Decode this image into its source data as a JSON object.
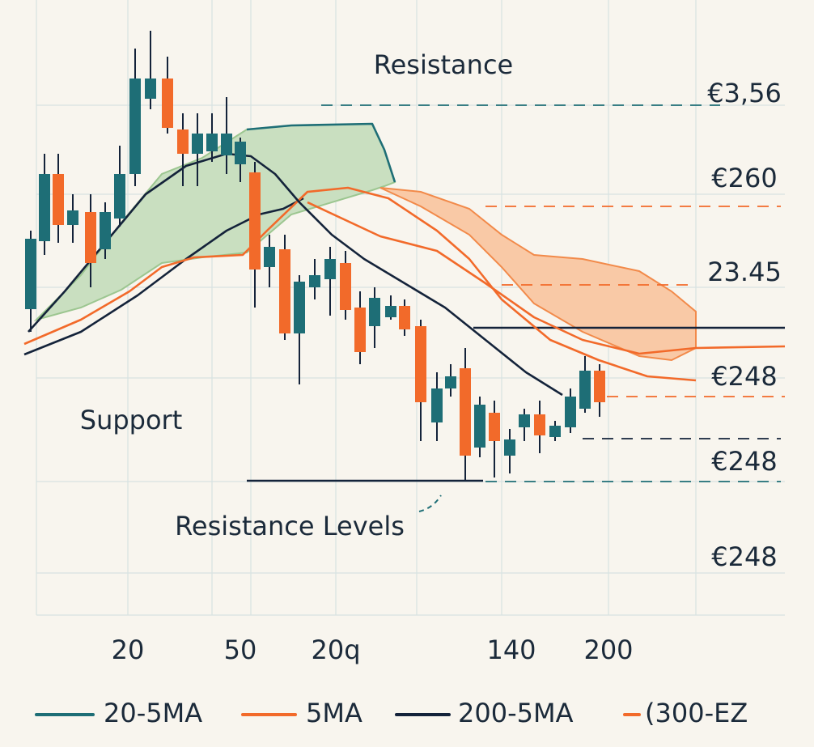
{
  "chart_data": {
    "type": "candlestick",
    "x": [
      38,
      55,
      72,
      90,
      112,
      130,
      148,
      167,
      186,
      207,
      226,
      244,
      262,
      280,
      297,
      315,
      333,
      352,
      370,
      389,
      408,
      427,
      445,
      463,
      483,
      500,
      520,
      540,
      557,
      575,
      593,
      611,
      630,
      648,
      667,
      686,
      705,
      723,
      741
    ],
    "open": [
      378,
      462,
      545,
      482,
      498,
      452,
      490,
      545,
      638,
      663,
      600,
      570,
      573,
      568,
      557,
      547,
      430,
      452,
      348,
      405,
      415,
      435,
      380,
      357,
      368,
      382,
      357,
      238,
      280,
      305,
      207,
      250,
      197,
      232,
      248,
      220,
      232,
      255,
      302
    ],
    "close": [
      465,
      545,
      482,
      500,
      435,
      498,
      545,
      663,
      663,
      602,
      570,
      595,
      595,
      595,
      585,
      427,
      455,
      348,
      412,
      420,
      440,
      377,
      325,
      392,
      382,
      353,
      263,
      280,
      295,
      197,
      260,
      215,
      217,
      248,
      222,
      234,
      270,
      302,
      263
    ],
    "high": [
      475,
      570,
      570,
      520,
      520,
      510,
      580,
      700,
      722,
      690,
      620,
      620,
      620,
      640,
      590,
      560,
      470,
      470,
      420,
      440,
      455,
      450,
      400,
      405,
      395,
      390,
      365,
      300,
      310,
      330,
      270,
      265,
      230,
      255,
      265,
      240,
      280,
      320,
      310
    ],
    "low": [
      350,
      445,
      460,
      460,
      405,
      440,
      480,
      530,
      625,
      595,
      530,
      530,
      560,
      545,
      535,
      380,
      405,
      340,
      285,
      390,
      370,
      365,
      310,
      330,
      365,
      345,
      215,
      215,
      270,
      165,
      195,
      170,
      175,
      215,
      200,
      215,
      225,
      250,
      245
    ],
    "up_color": "#1e6e76",
    "down_color": "#f26a2a",
    "xlim": [
      0,
      1006
    ],
    "ylim": [
      0,
      760
    ],
    "xticks": [
      {
        "value": 158,
        "label": "20"
      },
      {
        "value": 297,
        "label": "50"
      },
      {
        "value": 415,
        "label": "20q"
      },
      {
        "value": 632,
        "label": "140"
      },
      {
        "value": 752,
        "label": "200"
      }
    ],
    "series": [
      {
        "name": "20-5MA",
        "color": "#1e6e76",
        "x": [
          305,
          360,
          460,
          475,
          488
        ],
        "values": [
          600,
          605,
          607,
          575,
          535
        ]
      },
      {
        "name": "5MA",
        "color": "#f26a2a",
        "x": [
          30,
          100,
          160,
          200,
          240,
          300,
          330,
          380,
          430,
          480,
          540,
          580,
          620,
          680,
          740,
          800,
          860
        ],
        "values": [
          335,
          365,
          400,
          430,
          442,
          445,
          475,
          523,
          528,
          515,
          475,
          440,
          390,
          340,
          315,
          295,
          290
        ]
      },
      {
        "name": "200-5MA",
        "color": "#14233a",
        "x": [
          35,
          80,
          130,
          180,
          230,
          280,
          310,
          340,
          370,
          410,
          450,
          500,
          550,
          600,
          650,
          695
        ],
        "values": [
          350,
          400,
          460,
          520,
          555,
          570,
          567,
          545,
          510,
          470,
          440,
          410,
          380,
          340,
          300,
          272
        ]
      },
      {
        "name": "(300-EZ",
        "color": "#f26a2a",
        "x": [
          380,
          470,
          540,
          600,
          660,
          720,
          790,
          860,
          970
        ],
        "values": [
          510,
          468,
          450,
          410,
          368,
          340,
          323,
          330,
          332
        ]
      }
    ],
    "overlays": [
      {
        "color": "#14233a",
        "x": [
          30,
          100,
          170,
          230,
          280,
          320,
          350,
          375
        ],
        "values": [
          322,
          350,
          395,
          440,
          475,
          495,
          502,
          515
        ]
      }
    ],
    "bands": [
      {
        "color": "#c9dfc0",
        "edge": "#9cc690",
        "x": [
          45,
          100,
          150,
          200,
          250,
          305,
          360,
          460,
          475,
          488
        ],
        "upper": [
          365,
          420,
          485,
          545,
          565,
          600,
          605,
          607,
          575,
          535
        ],
        "lower": [
          365,
          380,
          402,
          435,
          442,
          448,
          495,
          525,
          530,
          535
        ]
      },
      {
        "color": "#f9c9a6",
        "edge": "#f28a4a",
        "x": [
          470,
          520,
          580,
          620,
          660,
          720,
          790,
          830,
          860
        ],
        "upper": [
          528,
          523,
          502,
          470,
          445,
          440,
          425,
          400,
          375
        ],
        "lower": [
          528,
          505,
          470,
          430,
          385,
          350,
          320,
          315,
          330
        ]
      }
    ],
    "levels": [
      {
        "value": 630,
        "x": [
          397,
          890
        ],
        "color": "#1e6e76",
        "dashed": true
      },
      {
        "value": 505,
        "x": [
          600,
          965
        ],
        "color": "#f26a2a",
        "dashed": true
      },
      {
        "value": 408,
        "x": [
          620,
          860
        ],
        "color": "#f26a2a",
        "dashed": true
      },
      {
        "value": 355,
        "x": [
          585,
          970
        ],
        "color": "#14233a",
        "dashed": false
      },
      {
        "value": 270,
        "x": [
          750,
          970
        ],
        "color": "#f26a2a",
        "dashed": true
      },
      {
        "value": 218,
        "x": [
          720,
          965
        ],
        "color": "#14233a",
        "dashed": true
      },
      {
        "value": 165,
        "x": [
          600,
          965
        ],
        "color": "#1e6e76",
        "dashed": true
      },
      {
        "value": 166,
        "x": [
          305,
          597
        ],
        "color": "#14233a",
        "dashed": false
      }
    ],
    "annotations": [
      "Resistance",
      "Support",
      "Resistance Levels",
      "€3,56",
      "€260",
      "23.45",
      "€248",
      "€248",
      "€248"
    ]
  }
}
